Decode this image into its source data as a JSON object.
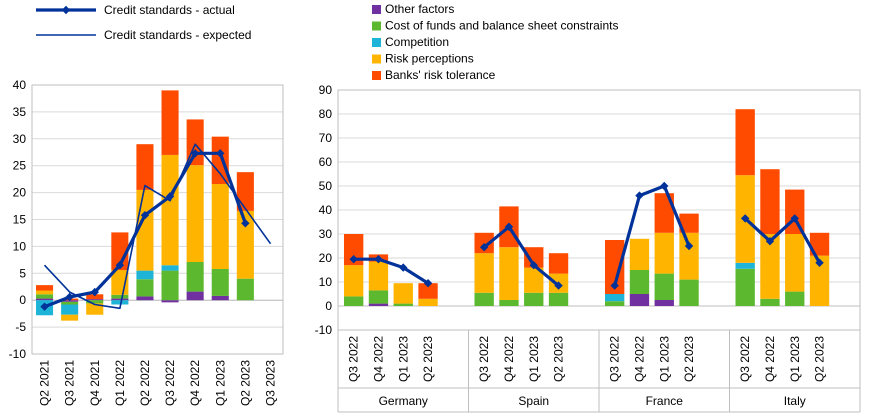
{
  "colors": {
    "other": "#7030A0",
    "cost": "#5CB82F",
    "competition": "#1EB4D8",
    "risk": "#FFB400",
    "tolerance": "#FF4B00",
    "actual": "#003299",
    "expected": "#003299"
  },
  "legend": {
    "left": [
      {
        "key": "actual",
        "label": "Credit standards - actual"
      },
      {
        "key": "expected",
        "label": "Credit standards - expected"
      }
    ],
    "right": [
      {
        "key": "other",
        "label": "Other factors"
      },
      {
        "key": "cost",
        "label": "Cost of funds and balance sheet constraints"
      },
      {
        "key": "competition",
        "label": "Competition"
      },
      {
        "key": "risk",
        "label": "Risk perceptions"
      },
      {
        "key": "tolerance",
        "label": "Banks' risk tolerance"
      }
    ]
  },
  "chart_data": [
    {
      "type": "bar",
      "stacked": true,
      "categories": [
        "Q2 2021",
        "Q3 2021",
        "Q4 2021",
        "Q1 2022",
        "Q2 2022",
        "Q3 2022",
        "Q4 2022",
        "Q1 2023",
        "Q2 2023",
        "Q3 2023"
      ],
      "ylim": [
        -10,
        40
      ],
      "yticks": [
        -10,
        -5,
        0,
        5,
        10,
        15,
        20,
        25,
        30,
        35,
        40
      ],
      "series": [
        {
          "name": "Other factors",
          "key": "other",
          "values": [
            0.3,
            -0.3,
            0.2,
            0.3,
            0.7,
            -0.4,
            1.6,
            0.8,
            0.0,
            null
          ]
        },
        {
          "name": "Cost of funds and balance sheet constraints",
          "key": "cost",
          "values": [
            0.8,
            -0.5,
            -0.6,
            0.7,
            3.2,
            5.5,
            5.5,
            5.0,
            4.0,
            null
          ]
        },
        {
          "name": "Competition",
          "key": "competition",
          "values": [
            -2.8,
            -1.9,
            0.0,
            -0.8,
            1.6,
            1.0,
            0.0,
            0.0,
            0.0,
            null
          ]
        },
        {
          "name": "Risk perceptions",
          "key": "risk",
          "values": [
            0.7,
            -1.1,
            -2.1,
            4.6,
            15.0,
            20.5,
            18.0,
            15.8,
            12.6,
            null
          ]
        },
        {
          "name": "Banks' risk tolerance",
          "key": "tolerance",
          "values": [
            1.0,
            0.3,
            0.9,
            7.0,
            8.5,
            12.0,
            8.5,
            8.8,
            7.2,
            null
          ]
        }
      ],
      "lines": [
        {
          "name": "Credit standards - actual",
          "key": "actual",
          "values": [
            -1.2,
            0.6,
            1.5,
            6.5,
            15.8,
            19.3,
            27.3,
            27.3,
            14.3,
            null
          ]
        },
        {
          "name": "Credit standards - expected",
          "key": "expected",
          "values": [
            6.5,
            1.5,
            -0.8,
            -1.5,
            21.3,
            18.5,
            29.0,
            23.5,
            17.0,
            10.5
          ]
        }
      ]
    },
    {
      "type": "bar",
      "stacked": true,
      "groups": [
        "Germany",
        "Spain",
        "France",
        "Italy"
      ],
      "categories": [
        "Q3 2022",
        "Q4 2022",
        "Q1 2023",
        "Q2 2023"
      ],
      "ylim": [
        -10,
        90
      ],
      "yticks": [
        -10,
        0,
        10,
        20,
        30,
        40,
        50,
        60,
        70,
        80,
        90
      ],
      "series": [
        {
          "name": "Other factors",
          "key": "other",
          "values": [
            [
              0.0,
              1.0,
              0.0,
              0.0
            ],
            [
              0.0,
              0.0,
              0.0,
              0.0
            ],
            [
              0.0,
              5.0,
              2.5,
              0.0
            ],
            [
              0.0,
              0.0,
              0.0,
              0.0
            ]
          ]
        },
        {
          "name": "Cost of funds and balance sheet constraints",
          "key": "cost",
          "values": [
            [
              4.0,
              5.5,
              1.0,
              0.0
            ],
            [
              5.5,
              2.5,
              5.5,
              5.5
            ],
            [
              2.0,
              10.0,
              11.0,
              11.0
            ],
            [
              15.5,
              3.0,
              6.0,
              0.0
            ]
          ]
        },
        {
          "name": "Competition",
          "key": "competition",
          "values": [
            [
              0.0,
              0.0,
              0.0,
              0.0
            ],
            [
              0.0,
              0.0,
              0.0,
              0.0
            ],
            [
              3.0,
              0.0,
              0.0,
              0.0
            ],
            [
              2.5,
              0.0,
              0.0,
              0.0
            ]
          ]
        },
        {
          "name": "Risk perceptions",
          "key": "risk",
          "values": [
            [
              13.0,
              12.0,
              8.5,
              3.0
            ],
            [
              16.5,
              22.0,
              10.5,
              8.0
            ],
            [
              0.0,
              13.0,
              17.0,
              19.5
            ],
            [
              36.5,
              27.0,
              24.0,
              21.0
            ]
          ]
        },
        {
          "name": "Banks' risk tolerance",
          "key": "tolerance",
          "values": [
            [
              13.0,
              3.0,
              0.0,
              6.5
            ],
            [
              8.5,
              17.0,
              8.5,
              8.5
            ],
            [
              22.5,
              0.0,
              16.5,
              8.0
            ],
            [
              27.5,
              27.0,
              18.5,
              9.5
            ]
          ]
        }
      ],
      "lines": [
        {
          "name": "Credit standards - actual",
          "key": "actual",
          "values": [
            [
              19.5,
              19.5,
              16.0,
              9.5
            ],
            [
              24.5,
              33.0,
              17.0,
              8.5
            ],
            [
              8.5,
              46.0,
              50.0,
              25.0
            ],
            [
              36.5,
              27.0,
              36.5,
              18.0
            ]
          ]
        }
      ]
    }
  ]
}
